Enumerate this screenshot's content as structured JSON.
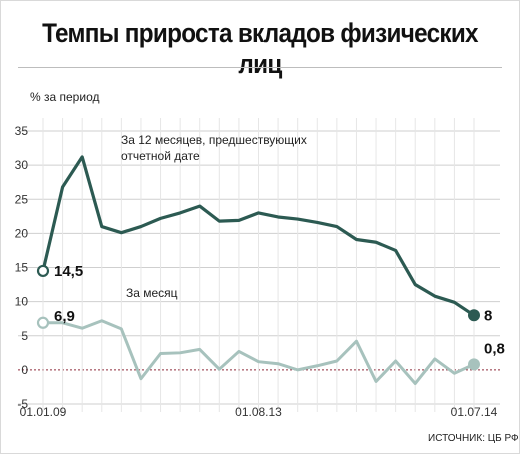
{
  "header": {
    "title": "Темпы прироста вкладов физических лиц"
  },
  "footer": {
    "source": "ИСТОЧНИК: ЦБ РФ"
  },
  "colors": {
    "series_12m": "#2c5a52",
    "series_month": "#a7c2bd",
    "zero_line": "#8e2a3a",
    "grid": "#cfcfcf"
  },
  "chart_data": {
    "type": "line",
    "ylabel": "% за период",
    "ylim": [
      -5,
      35
    ],
    "yticks": [
      -5,
      0,
      5,
      10,
      15,
      20,
      25,
      30,
      35
    ],
    "x_tick_labels": [
      {
        "index": 0,
        "label": "01.01.09"
      },
      {
        "index": 11,
        "label": "01.08.13"
      },
      {
        "index": 22,
        "label": "01.07.14"
      }
    ],
    "grid": true,
    "series": [
      {
        "name": "За 12 месяцев, предшествующих отчетной дате",
        "values": [
          14.5,
          26.8,
          31.2,
          21.0,
          20.1,
          21.0,
          22.2,
          23.0,
          24.0,
          21.8,
          21.9,
          23.0,
          22.4,
          22.1,
          21.6,
          21.0,
          19.1,
          18.7,
          17.5,
          12.5,
          10.8,
          9.9,
          8.0
        ],
        "label_first": "14,5",
        "label_last": "8"
      },
      {
        "name": "За месяц",
        "values": [
          6.9,
          6.9,
          6.1,
          7.2,
          6.0,
          -1.3,
          2.4,
          2.5,
          3.0,
          0.1,
          2.7,
          1.2,
          0.9,
          0.0,
          0.6,
          1.3,
          4.2,
          -1.7,
          1.3,
          -2.0,
          1.6,
          -0.5,
          0.8
        ],
        "label_first": "6,9",
        "label_last": "0,8"
      }
    ]
  }
}
